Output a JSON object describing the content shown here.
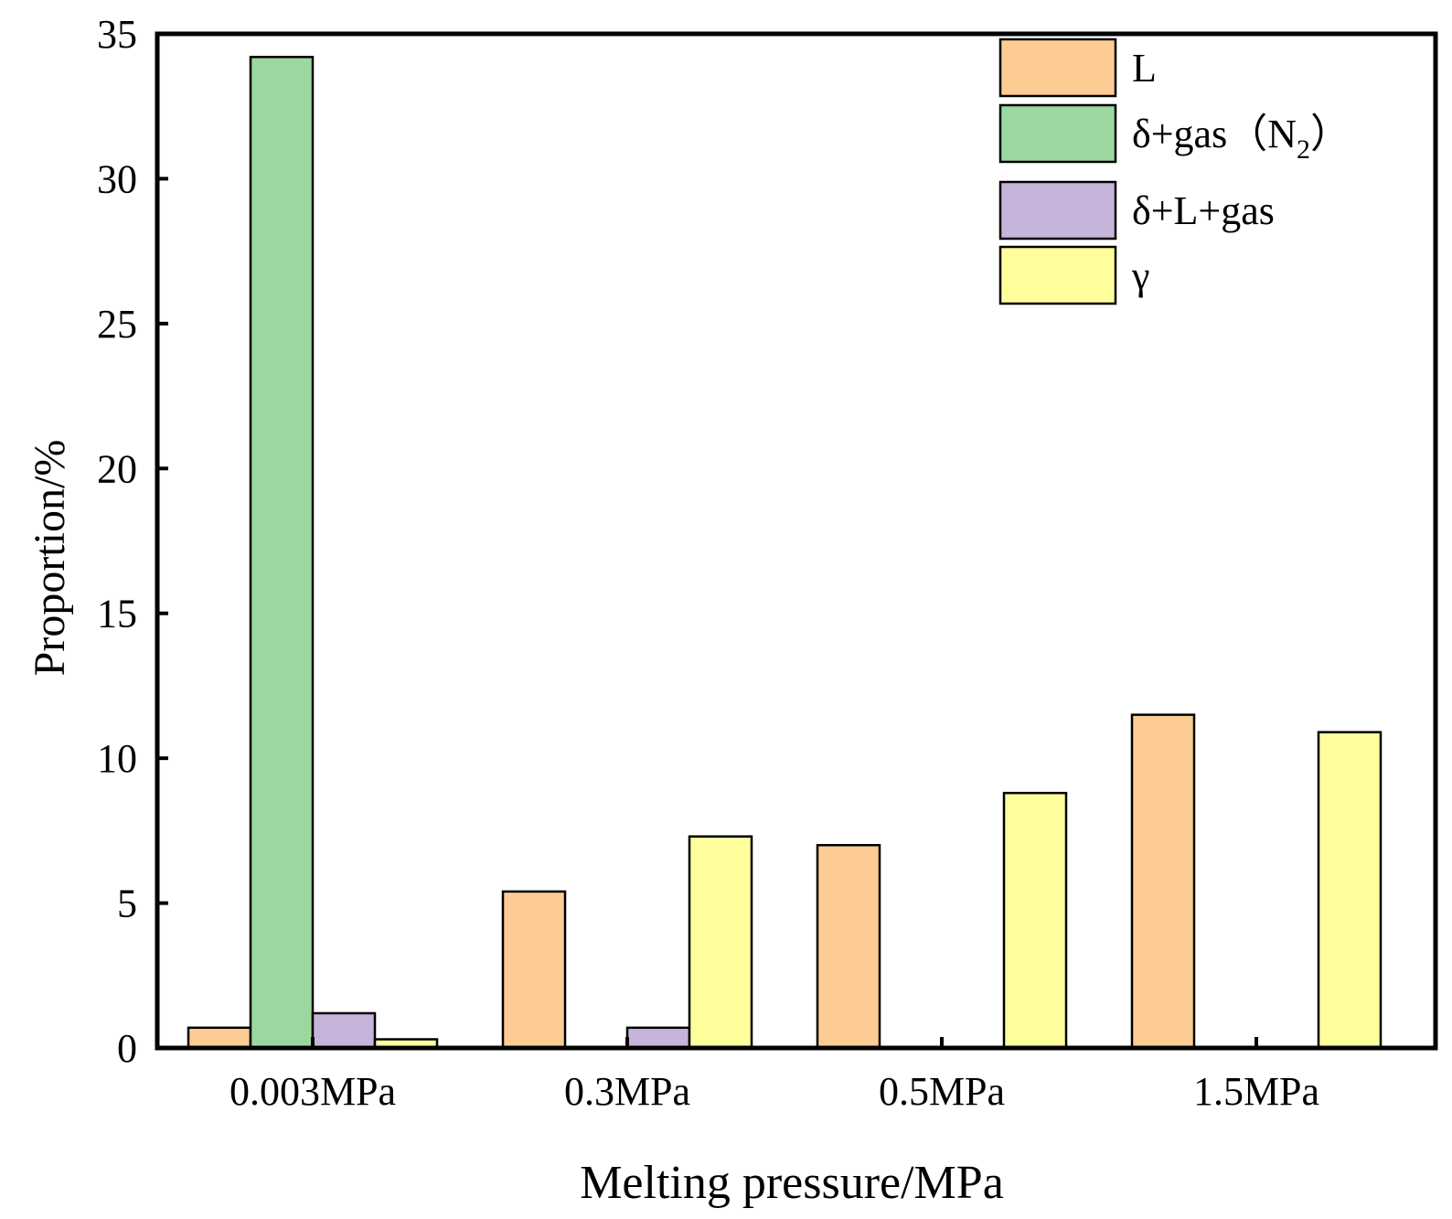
{
  "chart_data": {
    "type": "bar",
    "title": "",
    "xlabel": "Melting pressure/MPa",
    "ylabel": "Proportion/%",
    "ylim": [
      0,
      35
    ],
    "yticks": [
      "0",
      "5",
      "10",
      "15",
      "20",
      "25",
      "30",
      "35"
    ],
    "grid": false,
    "legend_position": "top-right",
    "categories": [
      "0.003MPa",
      "0.3MPa",
      "0.5MPa",
      "1.5MPa"
    ],
    "series": [
      {
        "name": "L",
        "color": "#FCCC94",
        "values": [
          0.7,
          5.4,
          7.0,
          11.5
        ]
      },
      {
        "name": "δ+gas（N2）",
        "legend_main": "δ+gas（N",
        "legend_sub": "2",
        "legend_close": "）",
        "color": "#9BD89F",
        "values": [
          34.2,
          0,
          0,
          0
        ]
      },
      {
        "name": "δ+L+gas",
        "color": "#C6B4DA",
        "values": [
          1.2,
          0.7,
          0,
          0
        ]
      },
      {
        "name": "γ",
        "color": "#FFFE9C",
        "values": [
          0.3,
          7.3,
          8.8,
          10.9
        ]
      }
    ]
  }
}
